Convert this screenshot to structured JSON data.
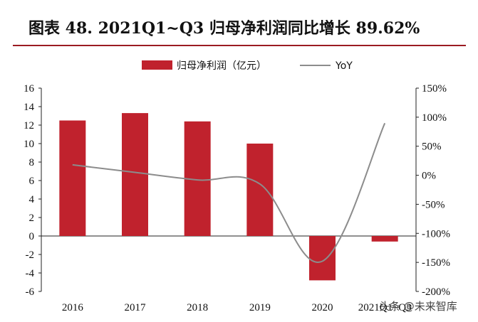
{
  "title": "图表 48. 2021Q1~Q3 归母净利润同比增长 89.62%",
  "watermark": "头条 @未来智库",
  "chart_data": {
    "type": "bar",
    "categories": [
      "2016",
      "2017",
      "2018",
      "2019",
      "2020",
      "2021Q1~Q3"
    ],
    "series": [
      {
        "name": "归母净利润（亿元）",
        "type": "bar",
        "axis": "left",
        "color": "#c0222d",
        "values": [
          12.5,
          13.3,
          12.4,
          10.0,
          -4.8,
          -0.6
        ]
      },
      {
        "name": "YoY",
        "type": "line",
        "axis": "right",
        "color": "#8c8c8c",
        "values": [
          0.18,
          0.05,
          -0.08,
          -0.15,
          -1.48,
          0.8962
        ]
      }
    ],
    "y_left": {
      "min": -6,
      "max": 16,
      "step": 2,
      "ticks": [
        "-6",
        "-4",
        "-2",
        "0",
        "2",
        "4",
        "6",
        "8",
        "10",
        "12",
        "14",
        "16"
      ]
    },
    "y_right": {
      "min": -2.0,
      "max": 1.5,
      "step": 0.5,
      "ticks": [
        "-200%",
        "-150%",
        "-100%",
        "-50%",
        "0%",
        "50%",
        "100%",
        "150%"
      ]
    },
    "legend_position": "top-center",
    "grid": false
  }
}
